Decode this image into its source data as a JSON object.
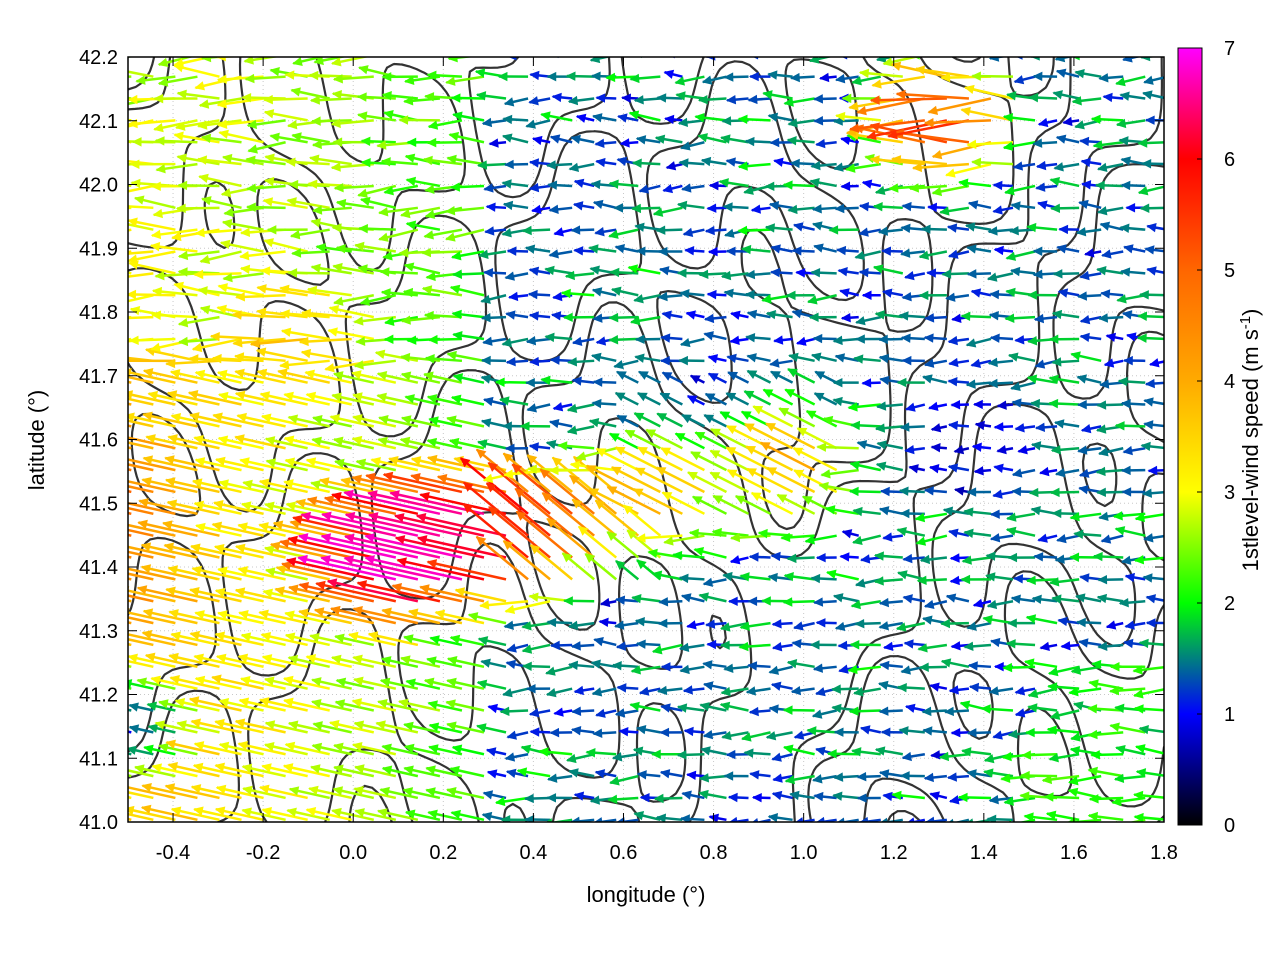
{
  "chart_data": {
    "type": "vector-field",
    "xlabel": "longitude (°)",
    "ylabel": "latitude (°)",
    "xlim": [
      -0.5,
      1.8
    ],
    "ylim": [
      41.0,
      42.2
    ],
    "xticks": [
      "-0.4",
      "-0.2",
      "0.0",
      "0.2",
      "0.4",
      "0.6",
      "0.8",
      "1.0",
      "1.2",
      "1.4",
      "1.6",
      "1.8"
    ],
    "xtick_values": [
      -0.4,
      -0.2,
      0.0,
      0.2,
      0.4,
      0.6,
      0.8,
      1.0,
      1.2,
      1.4,
      1.6,
      1.8
    ],
    "yticks": [
      "41.0",
      "41.1",
      "41.2",
      "41.3",
      "41.4",
      "41.5",
      "41.6",
      "41.7",
      "41.8",
      "41.9",
      "42.0",
      "42.1",
      "42.2"
    ],
    "ytick_values": [
      41.0,
      41.1,
      41.2,
      41.3,
      41.4,
      41.5,
      41.6,
      41.7,
      41.8,
      41.9,
      42.0,
      42.1,
      42.2
    ],
    "grid": true,
    "colorbar": {
      "label": "1stlevel-wind speed (m s",
      "label_superscript": "-1",
      "label_suffix": ")",
      "range": [
        0,
        7
      ],
      "ticks": [
        "0",
        "1",
        "2",
        "3",
        "4",
        "5",
        "6",
        "7"
      ],
      "tick_values": [
        0,
        1,
        2,
        3,
        4,
        5,
        6,
        7
      ],
      "stops": [
        {
          "value": 0,
          "color": "#000000"
        },
        {
          "value": 1,
          "color": "#0000ff"
        },
        {
          "value": 2,
          "color": "#00ff00"
        },
        {
          "value": 3,
          "color": "#ffff00"
        },
        {
          "value": 4,
          "color": "#ffaa00"
        },
        {
          "value": 5,
          "color": "#ff6600"
        },
        {
          "value": 6,
          "color": "#ff0000"
        },
        {
          "value": 7,
          "color": "#ff00ff"
        }
      ]
    },
    "contour_color": "#333333",
    "wind_vectors": [
      {
        "lon": -0.48,
        "lat": 42.2,
        "speed": 2.5
      },
      {
        "lon": -0.48,
        "lat": 41.5,
        "speed": 4.8
      },
      {
        "lon": -0.48,
        "lat": 41.35,
        "speed": 4.2
      },
      {
        "lon": -0.48,
        "lat": 41.15,
        "speed": 1.0
      },
      {
        "lon": -0.1,
        "lat": 41.75,
        "speed": 3.5
      },
      {
        "lon": 0.12,
        "lat": 41.4,
        "speed": 7.0
      },
      {
        "lon": 0.27,
        "lat": 41.45,
        "speed": 6.5
      },
      {
        "lon": 0.45,
        "lat": 41.45,
        "speed": 5.2
      },
      {
        "lon": 0.7,
        "lat": 41.5,
        "speed": 3.8
      },
      {
        "lon": 0.85,
        "lat": 41.7,
        "speed": 1.0
      },
      {
        "lon": 1.0,
        "lat": 41.55,
        "speed": 3.8
      },
      {
        "lon": 1.33,
        "lat": 42.1,
        "speed": 5.8
      },
      {
        "lon": 1.6,
        "lat": 41.05,
        "speed": 2.2
      },
      {
        "lon": 1.4,
        "lat": 41.6,
        "speed": 0.8
      }
    ]
  }
}
